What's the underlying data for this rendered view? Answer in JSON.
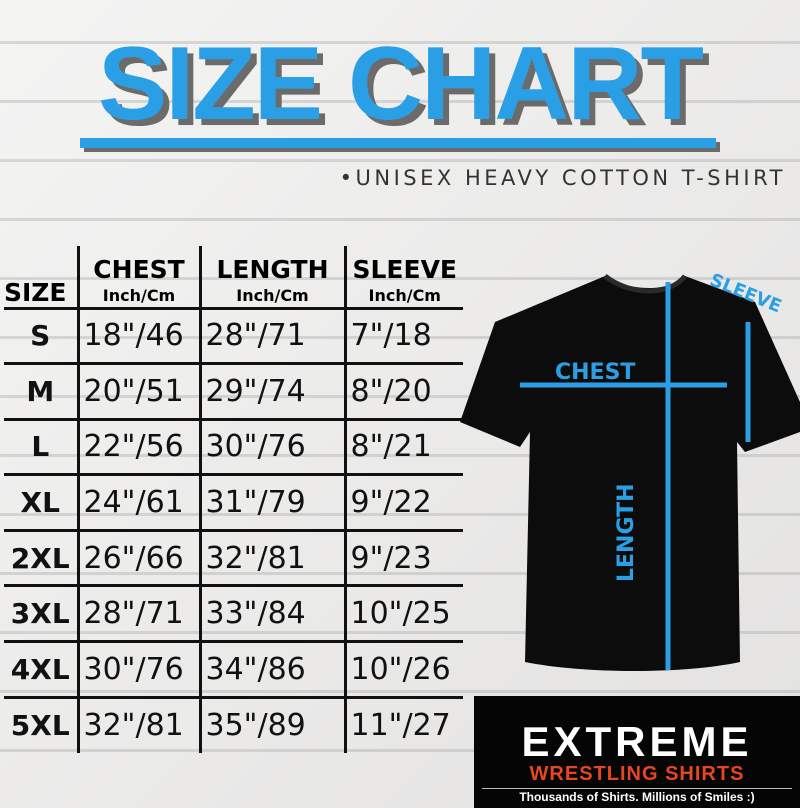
{
  "title": "SIZE CHART",
  "subtitle": "•UNISEX HEAVY COTTON T-SHIRT",
  "table": {
    "headers": [
      {
        "label": "SIZE",
        "unit": ""
      },
      {
        "label": "CHEST",
        "unit": "Inch/Cm"
      },
      {
        "label": "LENGTH",
        "unit": "Inch/Cm"
      },
      {
        "label": "SLEEVE",
        "unit": "Inch/Cm"
      }
    ],
    "rows": [
      [
        "S",
        "18\"/46",
        "28\"/71",
        "7\"/18"
      ],
      [
        "M",
        "20\"/51",
        "29\"/74",
        "8\"/20"
      ],
      [
        "L",
        "22\"/56",
        "30\"/76",
        "8\"/21"
      ],
      [
        "XL",
        "24\"/61",
        "31\"/79",
        "9\"/22"
      ],
      [
        "2XL",
        "26\"/66",
        "32\"/81",
        "9\"/23"
      ],
      [
        "3XL",
        "28\"/71",
        "33\"/84",
        "10\"/25"
      ],
      [
        "4XL",
        "30\"/76",
        "34\"/86",
        "10\"/26"
      ],
      [
        "5XL",
        "32\"/81",
        "35\"/89",
        "11\"/27"
      ]
    ]
  },
  "diagram": {
    "chest": "CHEST",
    "length": "LENGTH",
    "sleeve": "SLEEVE",
    "accent": "#2a9fe6"
  },
  "logo": {
    "word": "EXTREME",
    "line2": "WRESTLING SHIRTS",
    "tagline": "Thousands of Shirts. Millions of Smiles :)"
  }
}
